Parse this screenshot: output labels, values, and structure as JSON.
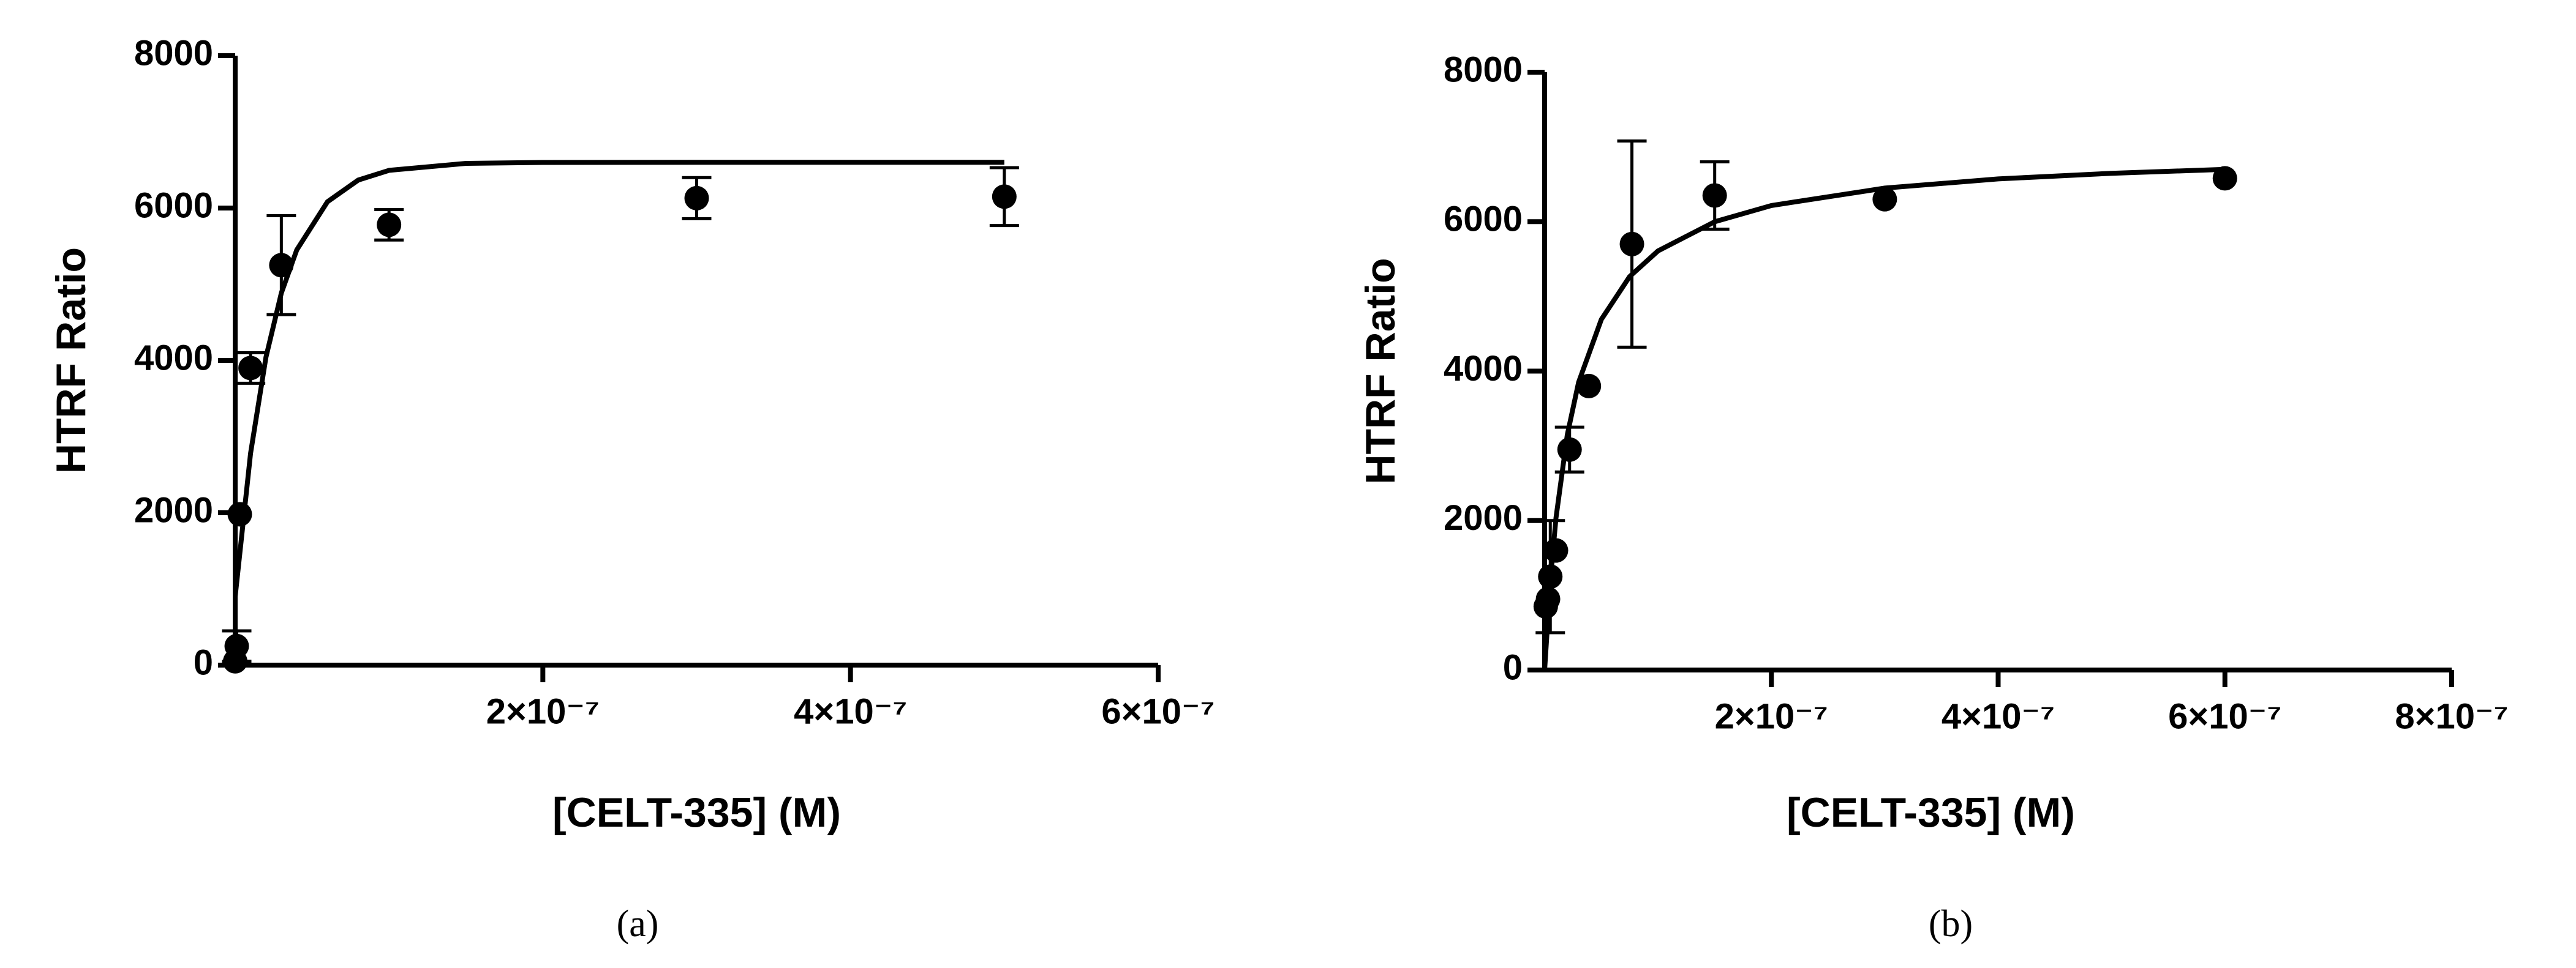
{
  "chart_data": [
    {
      "type": "scatter",
      "caption": "(a)",
      "xlabel": "[CELT-335] (M)",
      "ylabel": "HTRF Ratio",
      "color": "#000000",
      "xlim": [
        0,
        6e-07
      ],
      "ylim": [
        0,
        8000
      ],
      "xticks": [
        {
          "value": 2e-07,
          "label": "2×10⁻⁷"
        },
        {
          "value": 4e-07,
          "label": "4×10⁻⁷"
        },
        {
          "value": 6e-07,
          "label": "6×10⁻⁷"
        }
      ],
      "yticks": [
        0,
        2000,
        4000,
        6000,
        8000
      ],
      "points": {
        "x": [
          0,
          1e-09,
          3e-09,
          1e-08,
          3e-08,
          1e-07,
          3e-07,
          5e-07
        ],
        "values": [
          50,
          250,
          1980,
          3900,
          5250,
          5780,
          6130,
          6150
        ],
        "errors": [
          null,
          200,
          null,
          200,
          650,
          200,
          270,
          380
        ]
      },
      "fit": {
        "x": [
          0,
          1e-08,
          2e-08,
          3e-08,
          4e-08,
          6e-08,
          8e-08,
          1e-07,
          1.5e-07,
          2e-07,
          3e-07,
          4e-07,
          5e-07
        ],
        "values": [
          900,
          2780,
          4040,
          4885,
          5450,
          6083,
          6367,
          6495,
          6586,
          6598,
          6600,
          6600,
          6600
        ]
      }
    },
    {
      "type": "scatter",
      "caption": "(b)",
      "xlabel": "[CELT-335] (M)",
      "ylabel": "HTRF Ratio",
      "color": "#000000",
      "xlim": [
        0,
        8e-07
      ],
      "ylim": [
        0,
        8000
      ],
      "xticks": [
        {
          "value": 2e-07,
          "label": "2×10⁻⁷"
        },
        {
          "value": 4e-07,
          "label": "4×10⁻⁷"
        },
        {
          "value": 6e-07,
          "label": "6×10⁻⁷"
        },
        {
          "value": 8e-07,
          "label": "8×10⁻⁷"
        }
      ],
      "yticks": [
        0,
        2000,
        4000,
        6000,
        8000
      ],
      "points": {
        "x": [
          1e-09,
          3e-09,
          5e-09,
          1e-08,
          2.2e-08,
          3.9e-08,
          7.7e-08,
          1.5e-07,
          3e-07,
          6e-07
        ],
        "values": [
          850,
          950,
          1250,
          1600,
          2950,
          3800,
          5700,
          6350,
          6300,
          6580
        ],
        "errors": [
          null,
          null,
          750,
          null,
          300,
          null,
          1380,
          450,
          null,
          null
        ]
      },
      "fit": {
        "x": [
          0,
          5e-09,
          1e-08,
          2e-08,
          3e-08,
          5e-08,
          7.5e-08,
          1e-07,
          1.5e-07,
          2e-07,
          3e-07,
          4e-07,
          5e-07,
          6e-07
        ],
        "values": [
          0,
          1190,
          2032,
          3147,
          3851,
          4691,
          5265,
          5608,
          5999,
          6216,
          6449,
          6572,
          6647,
          6700
        ]
      }
    }
  ]
}
